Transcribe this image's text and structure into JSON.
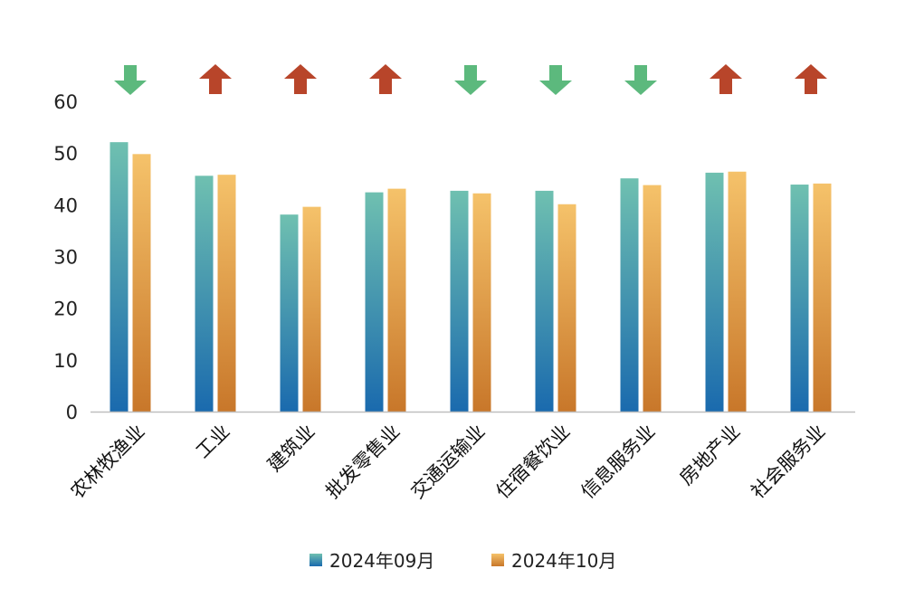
{
  "chart_data": {
    "type": "bar",
    "categories": [
      "农林牧渔业",
      "工业",
      "建筑业",
      "批发零售业",
      "交通运输业",
      "住宿餐饮业",
      "信息服务业",
      "房地产业",
      "社会服务业"
    ],
    "series": [
      {
        "name": "2024年09月",
        "values": [
          52.1,
          45.6,
          38.1,
          42.4,
          42.7,
          42.7,
          45.1,
          46.2,
          43.9
        ]
      },
      {
        "name": "2024年10月",
        "values": [
          49.8,
          45.8,
          39.6,
          43.1,
          42.2,
          40.1,
          43.8,
          46.4,
          44.1
        ]
      }
    ],
    "trend_arrows": [
      "down",
      "up",
      "up",
      "up",
      "down",
      "down",
      "down",
      "up",
      "up"
    ],
    "ylim": [
      0,
      60
    ],
    "yticks": [
      0,
      10,
      20,
      30,
      40,
      50,
      60
    ],
    "legend_position": "bottom-center",
    "grid": false
  },
  "colors": {
    "series1_top": "#6fc0b0",
    "series1_bottom": "#1a6aae",
    "series2_top": "#f5c26a",
    "series2_bottom": "#c8772a",
    "arrow_up": "#b8452a",
    "arrow_down": "#5cb97d",
    "axis": "#bfbfbf"
  }
}
